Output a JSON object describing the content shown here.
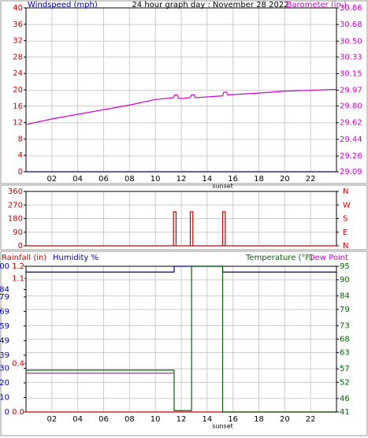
{
  "chart_data": [
    {
      "type": "line",
      "title": "24 hour graph day : November 28 2022",
      "xlim": [
        0,
        24
      ],
      "xticks": [
        {
          "value": 2,
          "label": "02"
        },
        {
          "value": 4,
          "label": "04"
        },
        {
          "value": 6,
          "label": "06"
        },
        {
          "value": 8,
          "label": "08"
        },
        10,
        12,
        14,
        16,
        18,
        20,
        22
      ],
      "annotations": [
        {
          "text": "sunset",
          "x": 15.2
        }
      ],
      "ylim": [
        0,
        40
      ],
      "yticks": [
        0,
        4,
        8,
        12,
        16,
        20,
        24,
        28,
        32,
        36,
        40
      ],
      "ycolor": "#cc0000",
      "y2lim": [
        29.09,
        30.86
      ],
      "y2ticks": [
        29.09,
        29.26,
        29.44,
        29.62,
        {
          "value": 29.8,
          "label": "29.80"
        },
        29.97,
        30.15,
        30.33,
        {
          "value": 30.5,
          "label": "30.50"
        },
        30.68,
        30.86
      ],
      "y2color": "#cc00cc",
      "grid": true,
      "series": [
        {
          "name": "Windspeed (mph)",
          "color": "#000099",
          "x": [
            0,
            24
          ],
          "values": [
            0,
            0
          ]
        },
        {
          "name": "Barometer (in.)",
          "color": "#cc00cc",
          "axis": "y2",
          "x": [
            0,
            2,
            4,
            6,
            8,
            10,
            11.4,
            11.5,
            11.7,
            11.8,
            12.7,
            12.8,
            13.0,
            13.1,
            15.2,
            15.3,
            15.5,
            15.6,
            18,
            20,
            22,
            24
          ],
          "values": [
            29.6,
            29.66,
            29.71,
            29.76,
            29.81,
            29.87,
            29.89,
            29.92,
            29.92,
            29.88,
            29.89,
            29.92,
            29.92,
            29.89,
            29.91,
            29.95,
            29.95,
            29.92,
            29.94,
            29.96,
            29.97,
            29.98
          ]
        }
      ]
    },
    {
      "type": "line",
      "xlim": [
        0,
        24
      ],
      "xgrid": [
        2,
        4,
        6,
        8,
        10,
        12,
        14,
        16,
        18,
        20,
        22
      ],
      "ylim": [
        0,
        360
      ],
      "yticks": [
        0,
        90,
        180,
        270,
        360
      ],
      "ycolor": "#cc0000",
      "y2lim": [
        0,
        360
      ],
      "y2ticks": [
        {
          "value": 0,
          "label": "N"
        },
        {
          "value": 90,
          "label": "E"
        },
        {
          "value": 180,
          "label": "S"
        },
        {
          "value": 270,
          "label": "W"
        },
        {
          "value": 360,
          "label": "N"
        }
      ],
      "y2color": "#cc0000",
      "grid": true,
      "series": [
        {
          "color": "#cc0000",
          "x": [
            0,
            11.4,
            11.4,
            11.6,
            11.6,
            12.7,
            12.7,
            12.9,
            12.9,
            15.2,
            15.2,
            15.4,
            15.4,
            24
          ],
          "values": [
            0,
            0,
            225,
            225,
            0,
            0,
            225,
            225,
            0,
            0,
            225,
            225,
            0,
            0
          ]
        }
      ]
    },
    {
      "type": "line",
      "xlim": [
        0,
        24
      ],
      "xticks": [
        {
          "value": 2,
          "label": "02"
        },
        {
          "value": 4,
          "label": "04"
        },
        {
          "value": 6,
          "label": "06"
        },
        {
          "value": 8,
          "label": "08"
        },
        10,
        12,
        14,
        16,
        18,
        20,
        22
      ],
      "annotations": [
        {
          "text": "sunset",
          "x": 15.2
        }
      ],
      "ylim": [
        0,
        100
      ],
      "yticks": [
        0,
        10,
        20,
        30,
        39,
        49,
        59,
        69,
        79,
        84,
        100
      ],
      "ycolor": "#000099",
      "y3lim": [
        0,
        1.2
      ],
      "y3ticks": [
        {
          "value": 0,
          "label": "0.0"
        },
        0.4,
        1.1,
        1.2
      ],
      "y3color": "#cc0000",
      "y2lim": [
        41,
        95
      ],
      "y2ticks": [
        41,
        46,
        52,
        57,
        63,
        68,
        73,
        79,
        84,
        90,
        95
      ],
      "y2color": "#006600",
      "grid": true,
      "series": [
        {
          "name": "Rainfall (in)",
          "color": "#cc0000",
          "axis": "y3",
          "x": [
            0,
            24
          ],
          "values": [
            0,
            0
          ]
        },
        {
          "name": "Humidity %",
          "color": "#000099",
          "x": [
            0,
            11.45,
            11.45,
            15.2,
            15.2,
            24
          ],
          "values": [
            96,
            96,
            100,
            100,
            96,
            96
          ]
        },
        {
          "name": "Temperature (°F)",
          "color": "#006600",
          "axis": "y2",
          "x": [
            0,
            11.45,
            11.45,
            12.8,
            12.8,
            15.2,
            15.2,
            24
          ],
          "values": [
            56.5,
            56.5,
            41.5,
            41.5,
            95,
            95,
            41,
            41
          ]
        },
        {
          "name": "Dew Point",
          "color": "#cc00cc",
          "axis": "y2",
          "x": [
            0,
            11.45
          ],
          "values": [
            55.4,
            55.4
          ]
        }
      ]
    }
  ]
}
